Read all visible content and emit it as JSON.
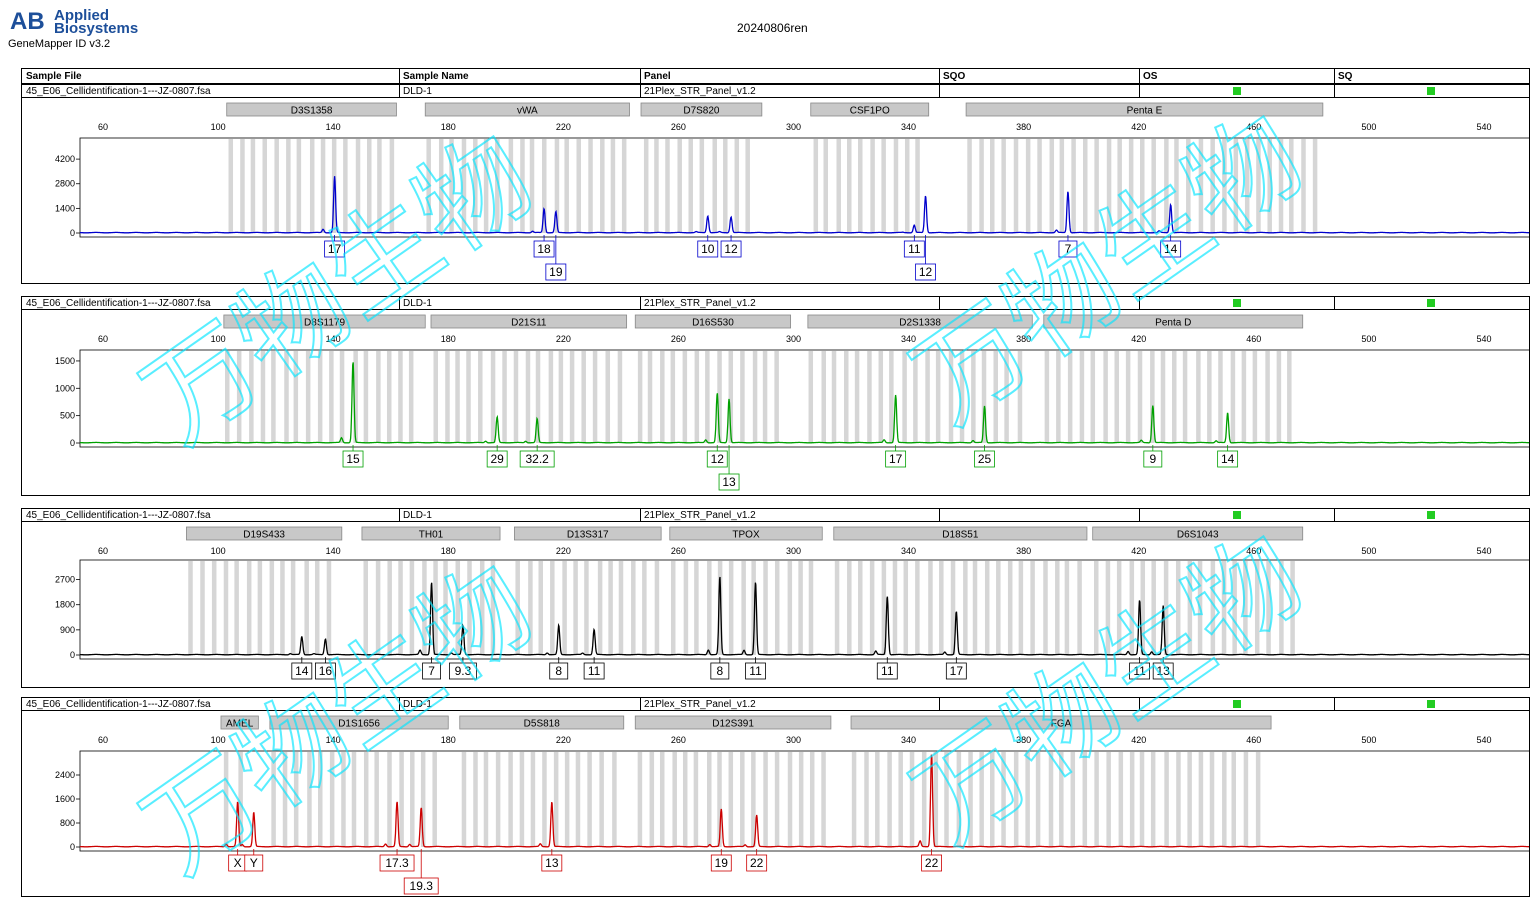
{
  "header": {
    "logo_mark": "AB",
    "logo_line1": "Applied",
    "logo_line2": "Biosystems",
    "app_name": "GeneMapper ID v3.2",
    "report_title": "20240806ren"
  },
  "columns": [
    "Sample File",
    "Sample Name",
    "Panel",
    "SQO",
    "OS",
    "SQ"
  ],
  "watermark_text": "万物生物",
  "colors": {
    "blue": "#0000cc",
    "green": "#00a000",
    "black": "#000000",
    "red": "#cc0000",
    "status_green": "#22cc22",
    "marker_gray": "#c8c8c8",
    "watermark": "#00e5ff"
  },
  "chart_data": [
    {
      "type": "line",
      "sample_file": "45_E06_Cellidentification-1---JZ-0807.fsa",
      "sample_name": "DLD-1",
      "panel": "21Plex_STR_Panel_v1.2",
      "sqo_flag": "green",
      "sq_flag": "green",
      "color": "#0000cc",
      "xlim": [
        52,
        556
      ],
      "xticks": [
        60,
        100,
        140,
        180,
        220,
        260,
        300,
        340,
        380,
        420,
        460,
        500,
        540
      ],
      "ylim": [
        0,
        5400
      ],
      "yticks": [
        0,
        1400,
        2800,
        4200
      ],
      "markers": [
        {
          "name": "D3S1358",
          "start": 103,
          "end": 162
        },
        {
          "name": "vWA",
          "start": 172,
          "end": 243
        },
        {
          "name": "D7S820",
          "start": 247,
          "end": 289
        },
        {
          "name": "CSF1PO",
          "start": 306,
          "end": 347
        },
        {
          "name": "Penta E",
          "start": 360,
          "end": 484
        }
      ],
      "peaks": [
        {
          "x": 140.5,
          "height": 3200
        },
        {
          "x": 213.3,
          "height": 1300
        },
        {
          "x": 217.4,
          "height": 1200
        },
        {
          "x": 270.2,
          "height": 950
        },
        {
          "x": 278.3,
          "height": 900
        },
        {
          "x": 342.0,
          "height": 300
        },
        {
          "x": 345.9,
          "height": 2100
        },
        {
          "x": 395.4,
          "height": 2350
        },
        {
          "x": 431.1,
          "height": 1600
        }
      ],
      "alleles": [
        {
          "label": "17",
          "x": 140.5,
          "row": 0
        },
        {
          "label": "18",
          "x": 213.3,
          "row": 0
        },
        {
          "label": "19",
          "x": 217.4,
          "row": 1
        },
        {
          "label": "10",
          "x": 270.2,
          "row": 0
        },
        {
          "label": "12",
          "x": 278.3,
          "row": 0
        },
        {
          "label": "11",
          "x": 342.0,
          "row": 0
        },
        {
          "label": "12",
          "x": 345.9,
          "row": 1
        },
        {
          "label": "7",
          "x": 395.4,
          "row": 0
        },
        {
          "label": "14",
          "x": 431.1,
          "row": 0
        }
      ]
    },
    {
      "type": "line",
      "sample_file": "45_E06_Cellidentification-1---JZ-0807.fsa",
      "sample_name": "DLD-1",
      "panel": "21Plex_STR_Panel_v1.2",
      "sqo_flag": "green",
      "sq_flag": "green",
      "color": "#00a000",
      "xlim": [
        52,
        556
      ],
      "xticks": [
        60,
        100,
        140,
        180,
        220,
        260,
        300,
        340,
        380,
        420,
        460,
        500,
        540
      ],
      "ylim": [
        0,
        1700
      ],
      "yticks": [
        0,
        500,
        1000,
        1500
      ],
      "markers": [
        {
          "name": "D8S1179",
          "start": 102,
          "end": 172
        },
        {
          "name": "D21S11",
          "start": 174,
          "end": 242
        },
        {
          "name": "D16S530",
          "start": 245,
          "end": 299
        },
        {
          "name": "D2S1338",
          "start": 305,
          "end": 383
        },
        {
          "name": "Penta D",
          "start": 387,
          "end": 477
        }
      ],
      "peaks": [
        {
          "x": 146.9,
          "height": 1480
        },
        {
          "x": 197.0,
          "height": 470
        },
        {
          "x": 210.9,
          "height": 440
        },
        {
          "x": 273.5,
          "height": 860
        },
        {
          "x": 277.6,
          "height": 800
        },
        {
          "x": 335.5,
          "height": 870
        },
        {
          "x": 366.4,
          "height": 670
        },
        {
          "x": 424.9,
          "height": 680
        },
        {
          "x": 450.9,
          "height": 550
        }
      ],
      "alleles": [
        {
          "label": "15",
          "x": 146.9,
          "row": 0
        },
        {
          "label": "29",
          "x": 197.0,
          "row": 0
        },
        {
          "label": "32.2",
          "x": 210.9,
          "row": 0
        },
        {
          "label": "12",
          "x": 273.5,
          "row": 0
        },
        {
          "label": "13",
          "x": 277.6,
          "row": 1
        },
        {
          "label": "17",
          "x": 335.5,
          "row": 0
        },
        {
          "label": "25",
          "x": 366.4,
          "row": 0
        },
        {
          "label": "9",
          "x": 424.9,
          "row": 0
        },
        {
          "label": "14",
          "x": 450.9,
          "row": 0
        }
      ]
    },
    {
      "type": "line",
      "sample_file": "45_E06_Cellidentification-1---JZ-0807.fsa",
      "sample_name": "DLD-1",
      "panel": "21Plex_STR_Panel_v1.2",
      "sqo_flag": "green",
      "sq_flag": "green",
      "color": "#000000",
      "xlim": [
        52,
        556
      ],
      "xticks": [
        60,
        100,
        140,
        180,
        220,
        260,
        300,
        340,
        380,
        420,
        460,
        500,
        540
      ],
      "ylim": [
        0,
        3400
      ],
      "yticks": [
        0,
        900,
        1800,
        2700
      ],
      "markers": [
        {
          "name": "D19S433",
          "start": 89,
          "end": 143
        },
        {
          "name": "TH01",
          "start": 150,
          "end": 198
        },
        {
          "name": "D13S317",
          "start": 203,
          "end": 254
        },
        {
          "name": "TPOX",
          "start": 257,
          "end": 310
        },
        {
          "name": "D18S51",
          "start": 314,
          "end": 402
        },
        {
          "name": "D6S1043",
          "start": 404,
          "end": 477
        }
      ],
      "peaks": [
        {
          "x": 129.1,
          "height": 650
        },
        {
          "x": 137.3,
          "height": 560
        },
        {
          "x": 174.2,
          "height": 2600
        },
        {
          "x": 185.1,
          "height": 1050
        },
        {
          "x": 218.4,
          "height": 1050
        },
        {
          "x": 230.7,
          "height": 900
        },
        {
          "x": 274.4,
          "height": 2800
        },
        {
          "x": 286.8,
          "height": 2600
        },
        {
          "x": 332.6,
          "height": 2100
        },
        {
          "x": 356.6,
          "height": 1550
        },
        {
          "x": 420.3,
          "height": 1950
        },
        {
          "x": 428.5,
          "height": 1750
        }
      ],
      "alleles": [
        {
          "label": "14",
          "x": 129.1,
          "row": 0
        },
        {
          "label": "16",
          "x": 137.3,
          "row": 0
        },
        {
          "label": "7",
          "x": 174.2,
          "row": 0
        },
        {
          "label": "9.3",
          "x": 185.1,
          "row": 0
        },
        {
          "label": "8",
          "x": 218.4,
          "row": 0
        },
        {
          "label": "11",
          "x": 230.7,
          "row": 0
        },
        {
          "label": "8",
          "x": 274.4,
          "row": 0
        },
        {
          "label": "11",
          "x": 286.8,
          "row": 0
        },
        {
          "label": "11",
          "x": 332.6,
          "row": 0
        },
        {
          "label": "17",
          "x": 356.6,
          "row": 0
        },
        {
          "label": "11",
          "x": 420.3,
          "row": 0
        },
        {
          "label": "13",
          "x": 428.5,
          "row": 0
        }
      ]
    },
    {
      "type": "line",
      "sample_file": "45_E06_Cellidentification-1---JZ-0807.fsa",
      "sample_name": "DLD-1",
      "panel": "21Plex_STR_Panel_v1.2",
      "sqo_flag": "green",
      "sq_flag": "green",
      "color": "#cc0000",
      "xlim": [
        52,
        556
      ],
      "xticks": [
        60,
        100,
        140,
        180,
        220,
        260,
        300,
        340,
        380,
        420,
        460,
        500,
        540
      ],
      "ylim": [
        0,
        3200
      ],
      "yticks": [
        0,
        800,
        1600,
        2400
      ],
      "markers": [
        {
          "name": "AMEL",
          "start": 101,
          "end": 114
        },
        {
          "name": "D1S1656",
          "start": 118,
          "end": 180
        },
        {
          "name": "D5S818",
          "start": 184,
          "end": 241
        },
        {
          "name": "D12S391",
          "start": 245,
          "end": 313
        },
        {
          "name": "FGA",
          "start": 320,
          "end": 466
        }
      ],
      "peaks": [
        {
          "x": 106.8,
          "height": 1500
        },
        {
          "x": 112.4,
          "height": 1150
        },
        {
          "x": 162.2,
          "height": 1500
        },
        {
          "x": 170.6,
          "height": 1300
        },
        {
          "x": 216.0,
          "height": 1500
        },
        {
          "x": 274.9,
          "height": 1250
        },
        {
          "x": 287.2,
          "height": 1050
        },
        {
          "x": 348.0,
          "height": 3100
        }
      ],
      "alleles": [
        {
          "label": "X",
          "x": 106.8,
          "row": 0
        },
        {
          "label": "Y",
          "x": 112.4,
          "row": 0
        },
        {
          "label": "17.3",
          "x": 162.2,
          "row": 0
        },
        {
          "label": "19.3",
          "x": 170.6,
          "row": 1
        },
        {
          "label": "13",
          "x": 216.0,
          "row": 0
        },
        {
          "label": "19",
          "x": 274.9,
          "row": 0
        },
        {
          "label": "22",
          "x": 287.2,
          "row": 0
        },
        {
          "label": "22",
          "x": 348.0,
          "row": 0
        }
      ]
    }
  ]
}
